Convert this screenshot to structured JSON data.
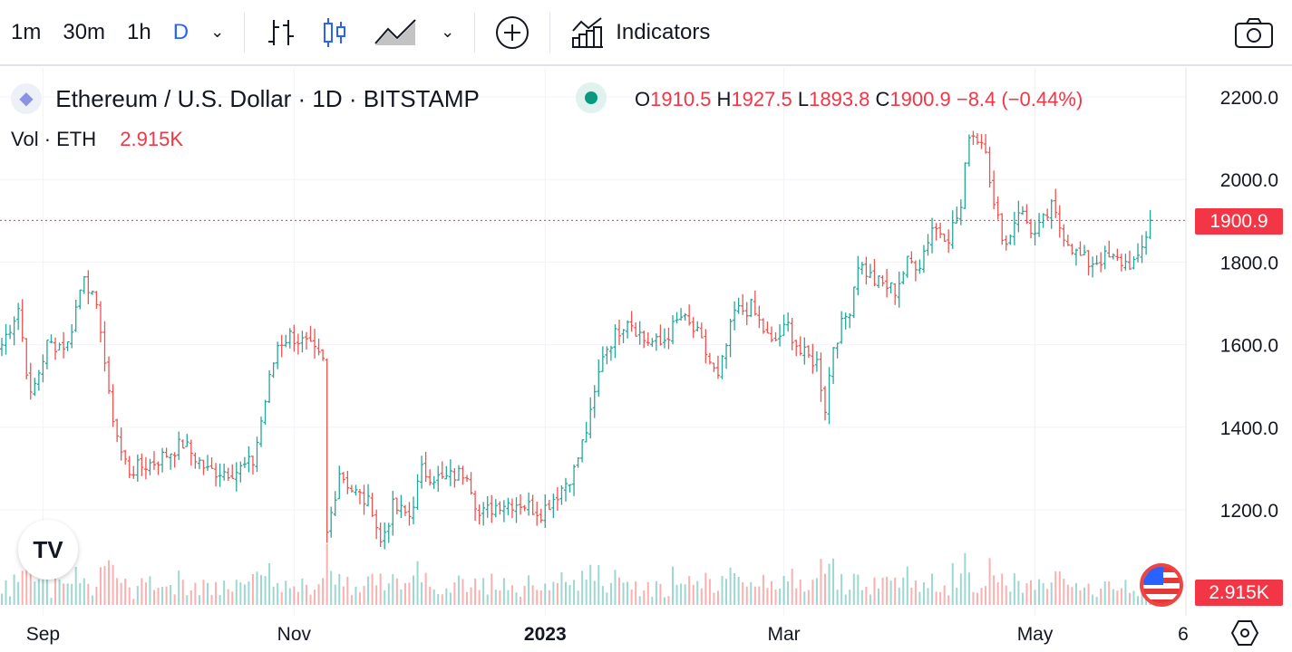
{
  "toolbar": {
    "intervals": [
      "1m",
      "30m",
      "1h",
      "D"
    ],
    "active_interval": "D",
    "indicators_label": "Indicators"
  },
  "legend": {
    "symbol": "Ethereum / U.S. Dollar · 1D · BITSTAMP",
    "o_label": "O",
    "o": "1910.5",
    "h_label": "H",
    "h": "1927.5",
    "l_label": "L",
    "l": "1893.8",
    "c_label": "C",
    "c": "1900.9",
    "change": "−8.4 (−0.44%)",
    "vol_label": "Vol · ETH",
    "vol": "2.915K"
  },
  "colors": {
    "up": "#26a69a",
    "down": "#ef5350",
    "accent": "#2962ff"
  },
  "price_label": "1900.9",
  "volume_label": "2.915K",
  "chart_data": {
    "type": "ohlc",
    "title": "Ethereum / U.S. Dollar · 1D · BITSTAMP",
    "ylim": [
      1050,
      2250
    ],
    "y_ticks": [
      "2200.0",
      "2000.0",
      "1800.0",
      "1600.0",
      "1400.0",
      "1200.0"
    ],
    "y_tick_values": [
      2200,
      2000,
      1800,
      1600,
      1400,
      1200
    ],
    "x_ticks": [
      {
        "label": "Sep",
        "day": 10
      },
      {
        "label": "Nov",
        "day": 71
      },
      {
        "label": "2023",
        "day": 132
      },
      {
        "label": "Mar",
        "day": 190
      },
      {
        "label": "May",
        "day": 251
      },
      {
        "label": "6",
        "day": 287
      }
    ],
    "last_price": 1900.9,
    "approx_close_keypoints": [
      [
        0,
        1600
      ],
      [
        4,
        1690
      ],
      [
        7,
        1470
      ],
      [
        11,
        1600
      ],
      [
        16,
        1600
      ],
      [
        20,
        1777
      ],
      [
        24,
        1645
      ],
      [
        26,
        1470
      ],
      [
        29,
        1338
      ],
      [
        31,
        1294
      ],
      [
        37,
        1316
      ],
      [
        44,
        1360
      ],
      [
        50,
        1294
      ],
      [
        57,
        1294
      ],
      [
        61,
        1316
      ],
      [
        65,
        1514
      ],
      [
        67,
        1600
      ],
      [
        70,
        1623
      ],
      [
        74,
        1600
      ],
      [
        78,
        1557
      ],
      [
        79,
        1140
      ],
      [
        82,
        1294
      ],
      [
        85,
        1250
      ],
      [
        90,
        1206
      ],
      [
        92,
        1119
      ],
      [
        95,
        1206
      ],
      [
        99,
        1185
      ],
      [
        102,
        1294
      ],
      [
        107,
        1272
      ],
      [
        113,
        1294
      ],
      [
        116,
        1185
      ],
      [
        121,
        1217
      ],
      [
        126,
        1217
      ],
      [
        131,
        1195
      ],
      [
        135,
        1240
      ],
      [
        139,
        1294
      ],
      [
        143,
        1426
      ],
      [
        146,
        1580
      ],
      [
        152,
        1667
      ],
      [
        156,
        1612
      ],
      [
        160,
        1600
      ],
      [
        165,
        1667
      ],
      [
        169,
        1623
      ],
      [
        174,
        1514
      ],
      [
        178,
        1678
      ],
      [
        182,
        1690
      ],
      [
        187,
        1600
      ],
      [
        191,
        1645
      ],
      [
        194,
        1580
      ],
      [
        198,
        1557
      ],
      [
        200,
        1448
      ],
      [
        202,
        1600
      ],
      [
        206,
        1690
      ],
      [
        208,
        1798
      ],
      [
        212,
        1754
      ],
      [
        217,
        1732
      ],
      [
        220,
        1798
      ],
      [
        223,
        1798
      ],
      [
        226,
        1886
      ],
      [
        230,
        1864
      ],
      [
        233,
        1930
      ],
      [
        235,
        2117
      ],
      [
        239,
        2085
      ],
      [
        241,
        1930
      ],
      [
        244,
        1842
      ],
      [
        247,
        1930
      ],
      [
        251,
        1864
      ],
      [
        255,
        1930
      ],
      [
        257,
        1886
      ],
      [
        261,
        1820
      ],
      [
        264,
        1798
      ],
      [
        268,
        1810
      ],
      [
        273,
        1798
      ],
      [
        276,
        1798
      ],
      [
        279,
        1901
      ]
    ]
  }
}
